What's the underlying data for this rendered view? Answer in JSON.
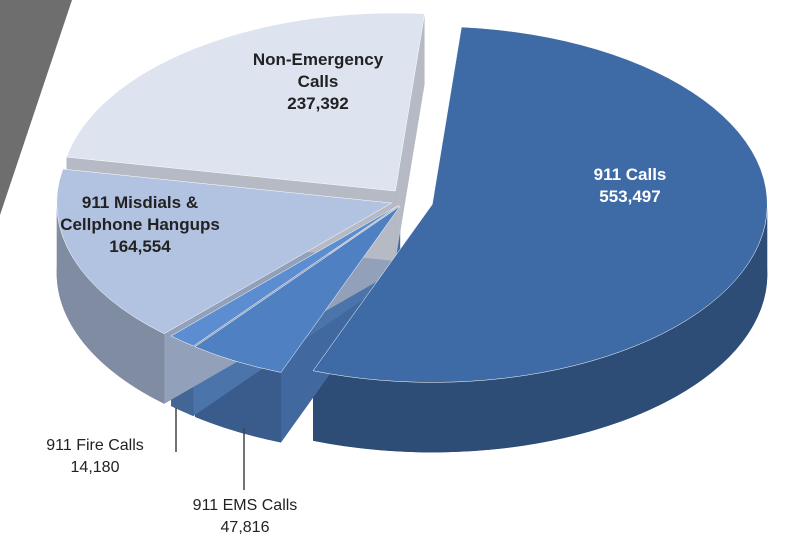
{
  "chart_data": {
    "type": "pie",
    "categories": [
      "911 Calls",
      "911 EMS Calls",
      "911 Fire Calls",
      "911 Misdials & Cellphone Hangups",
      "Non-Emergency Calls"
    ],
    "values": [
      553497,
      47816,
      14180,
      164554,
      237392
    ],
    "value_labels": [
      "553,497",
      "47,816",
      "14,180",
      "164,554",
      "237,392"
    ],
    "colors": [
      "#3e6ba5",
      "#4f80c2",
      "#5b8dd0",
      "#b2c3e1",
      "#dde3ef"
    ]
  }
}
